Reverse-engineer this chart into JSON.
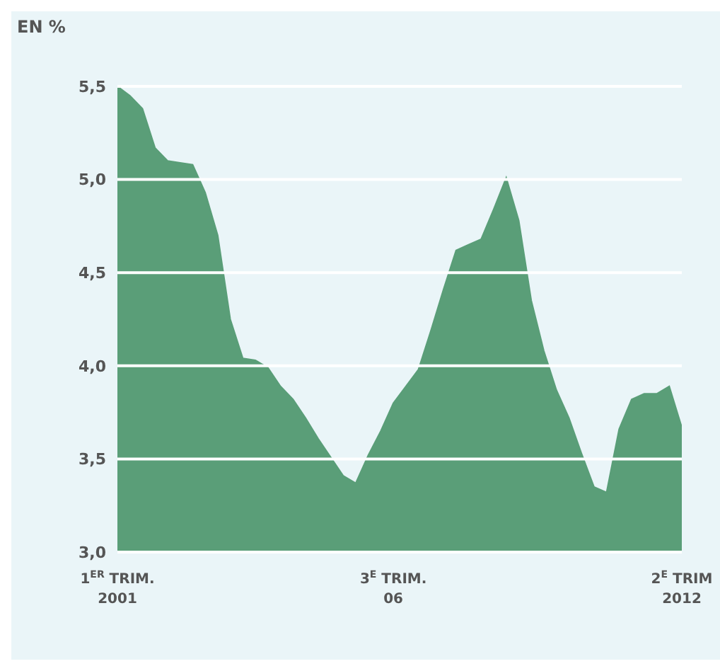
{
  "chart_data": {
    "type": "area",
    "ylabel": "EN %",
    "categories": [
      "1$^{ER}$ TRIM.\n2001",
      null,
      null,
      null,
      null,
      null,
      null,
      null,
      null,
      null,
      null,
      null,
      null,
      null,
      null,
      null,
      null,
      null,
      null,
      null,
      null,
      null,
      "3$^{E}$ TRIM.\n06",
      null,
      null,
      null,
      null,
      null,
      null,
      null,
      null,
      null,
      null,
      null,
      null,
      null,
      null,
      null,
      null,
      null,
      null,
      null,
      null,
      null,
      null,
      "2$^{E}$ TRIM\n2012"
    ],
    "series": [
      {
        "color": "#5a9e78",
        "values": [
          5.5,
          5.45,
          5.38,
          5.17,
          5.1,
          5.09,
          5.08,
          4.93,
          4.7,
          4.25,
          4.04,
          4.03,
          3.99,
          3.89,
          3.82,
          3.72,
          3.61,
          3.51,
          3.41,
          3.37,
          3.52,
          3.65,
          3.8,
          3.89,
          3.98,
          4.19,
          4.41,
          4.62,
          4.65,
          4.68,
          4.84,
          5.01,
          4.78,
          4.35,
          4.08,
          3.87,
          3.72,
          3.53,
          3.35,
          3.32,
          3.66,
          3.82,
          3.85,
          3.85,
          3.89,
          3.67
        ]
      }
    ],
    "ylim": [
      3,
      5.5
    ],
    "yticks": [
      {
        "value": 3,
        "label": "3,0"
      },
      {
        "value": 3.5,
        "label": "3,5"
      },
      {
        "value": 4,
        "label": "4,0"
      },
      {
        "value": 4.5,
        "label": "4,5"
      },
      {
        "value": 5,
        "label": "5,0"
      },
      {
        "value": 5.5,
        "label": "5,5"
      }
    ],
    "grid": "y"
  }
}
